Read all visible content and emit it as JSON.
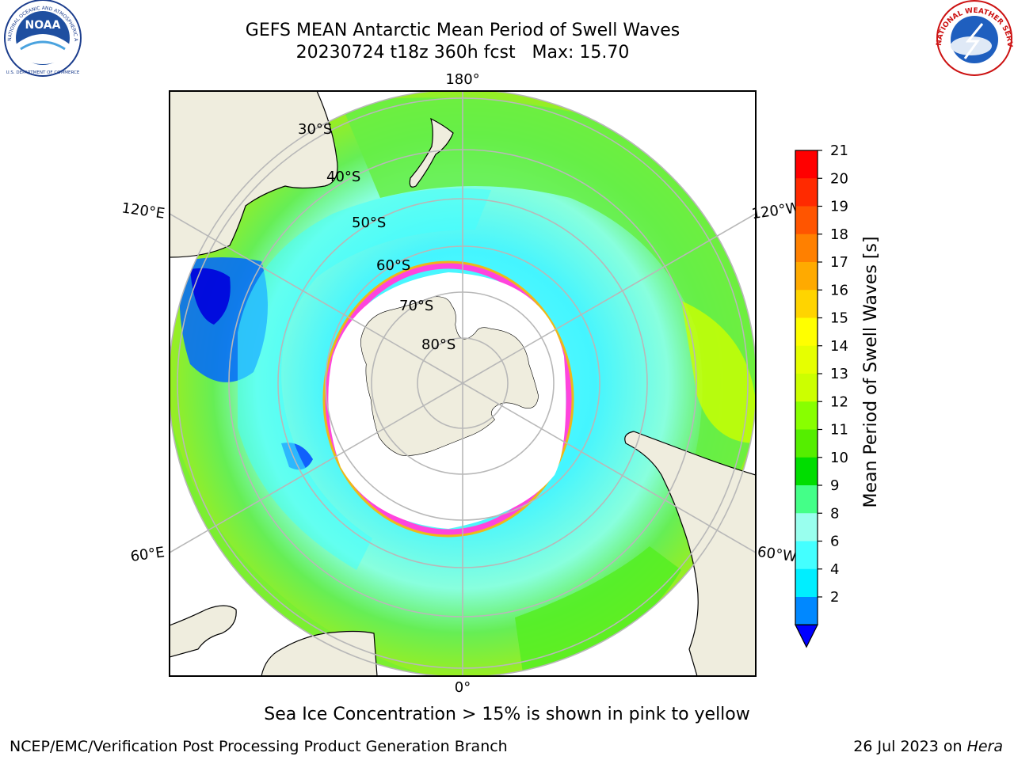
{
  "header": {
    "title_line1": "GEFS MEAN Antarctic Mean Period of Swell Waves",
    "title_line2": "20230724 t18z 360h fcst   Max: 15.70"
  },
  "logos": {
    "left": {
      "text": "NOAA",
      "ring_top": "NATIONAL OCEANIC AND ATMOSPHERIC ADMINISTRATION",
      "ring_bottom": "U.S. DEPARTMENT OF COMMERCE"
    },
    "right": {
      "ring_text": "NATIONAL WEATHER SERVICE"
    }
  },
  "map": {
    "longitude_labels": [
      "180°",
      "120°E",
      "120°W",
      "60°E",
      "60°W",
      "0°"
    ],
    "latitude_labels": [
      "30°S",
      "40°S",
      "50°S",
      "60°S",
      "70°S",
      "80°S"
    ],
    "colors": {
      "land": "#efedde",
      "ice_pink": "#ff44dd",
      "ice_yellow": "#ffb000",
      "grid": "#b8b8b8"
    }
  },
  "colorbar": {
    "label": "Mean Period of Swell Waves [s]",
    "ticks": [
      "21",
      "20",
      "19",
      "18",
      "17",
      "16",
      "15",
      "14",
      "13",
      "12",
      "11",
      "10",
      "9",
      "8",
      "6",
      "4",
      "2"
    ],
    "colors": [
      "#ff0000",
      "#ff2a00",
      "#ff5500",
      "#ff8000",
      "#ffaa00",
      "#ffd400",
      "#ffff00",
      "#e6ff00",
      "#ccff00",
      "#88ff00",
      "#55ee00",
      "#00dd00",
      "#44ff88",
      "#99ffee",
      "#44ffff",
      "#00eeff",
      "#0088ff",
      "#0000ff"
    ]
  },
  "note": "Sea Ice Concentration > 15% is shown in pink to yellow",
  "footer": {
    "left": "NCEP/EMC/Verification Post Processing Product Generation Branch",
    "right_prefix": "26 Jul 2023 on ",
    "right_host": "Hera"
  }
}
